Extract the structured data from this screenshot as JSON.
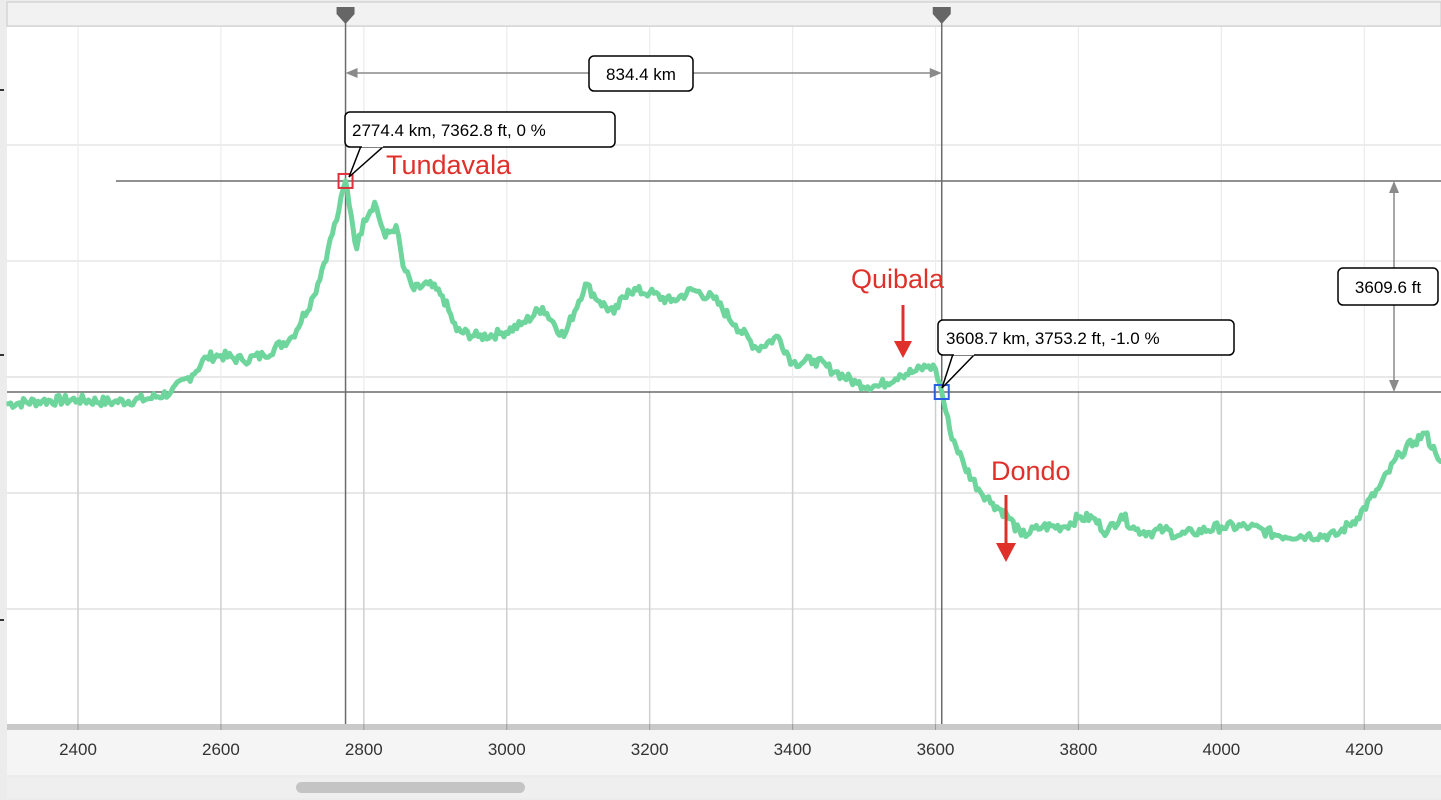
{
  "chart_data": {
    "type": "line",
    "title": "",
    "xlabel": "",
    "ylabel": "",
    "xlim": [
      2300,
      4310
    ],
    "x_ticks": [
      2400,
      2600,
      2800,
      3000,
      3200,
      3400,
      3600,
      3800,
      4000,
      4200
    ],
    "x_tick_labels": [
      "2400",
      "2600",
      "2800",
      "3000",
      "3200",
      "3400",
      "3600",
      "3800",
      "4000",
      "4200"
    ],
    "grid": true,
    "series": [
      {
        "color": "#6ed69c",
        "points": [
          [
            2300,
            3550
          ],
          [
            2350,
            3600
          ],
          [
            2400,
            3620
          ],
          [
            2450,
            3580
          ],
          [
            2500,
            3640
          ],
          [
            2530,
            3750
          ],
          [
            2560,
            4050
          ],
          [
            2580,
            4350
          ],
          [
            2600,
            4380
          ],
          [
            2630,
            4300
          ],
          [
            2660,
            4380
          ],
          [
            2700,
            4700
          ],
          [
            2730,
            5400
          ],
          [
            2750,
            6200
          ],
          [
            2765,
            6850
          ],
          [
            2774.4,
            7362.8
          ],
          [
            2782,
            6800
          ],
          [
            2790,
            6200
          ],
          [
            2800,
            6700
          ],
          [
            2815,
            7000
          ],
          [
            2830,
            6400
          ],
          [
            2845,
            6600
          ],
          [
            2855,
            5900
          ],
          [
            2870,
            5500
          ],
          [
            2890,
            5600
          ],
          [
            2910,
            5400
          ],
          [
            2930,
            4800
          ],
          [
            2960,
            4700
          ],
          [
            2990,
            4750
          ],
          [
            3020,
            4900
          ],
          [
            3050,
            5200
          ],
          [
            3080,
            4700
          ],
          [
            3110,
            5600
          ],
          [
            3130,
            5300
          ],
          [
            3150,
            5100
          ],
          [
            3170,
            5500
          ],
          [
            3200,
            5450
          ],
          [
            3230,
            5300
          ],
          [
            3260,
            5500
          ],
          [
            3290,
            5350
          ],
          [
            3320,
            4900
          ],
          [
            3350,
            4500
          ],
          [
            3380,
            4700
          ],
          [
            3400,
            4250
          ],
          [
            3430,
            4300
          ],
          [
            3460,
            4100
          ],
          [
            3490,
            3900
          ],
          [
            3520,
            3850
          ],
          [
            3550,
            4050
          ],
          [
            3570,
            4100
          ],
          [
            3590,
            4200
          ],
          [
            3600,
            4150
          ],
          [
            3608.7,
            3753.2
          ],
          [
            3620,
            3100
          ],
          [
            3640,
            2500
          ],
          [
            3660,
            2100
          ],
          [
            3680,
            1850
          ],
          [
            3700,
            1650
          ],
          [
            3720,
            1300
          ],
          [
            3750,
            1450
          ],
          [
            3780,
            1450
          ],
          [
            3800,
            1600
          ],
          [
            3820,
            1600
          ],
          [
            3840,
            1350
          ],
          [
            3860,
            1650
          ],
          [
            3880,
            1400
          ],
          [
            3900,
            1350
          ],
          [
            3920,
            1400
          ],
          [
            3940,
            1300
          ],
          [
            3960,
            1350
          ],
          [
            4000,
            1450
          ],
          [
            4040,
            1450
          ],
          [
            4080,
            1300
          ],
          [
            4120,
            1300
          ],
          [
            4160,
            1300
          ],
          [
            4190,
            1600
          ],
          [
            4220,
            2100
          ],
          [
            4250,
            2700
          ],
          [
            4270,
            2900
          ],
          [
            4285,
            3050
          ],
          [
            4300,
            2700
          ],
          [
            4310,
            2600
          ]
        ]
      }
    ],
    "markers": [
      {
        "name": "start-marker",
        "x": 2774.4,
        "y": 7362.8,
        "color": "#e0303c",
        "label": "2774.4 km, 7362.8 ft, 0 %"
      },
      {
        "name": "end-marker",
        "x": 3608.7,
        "y": 3753.2,
        "color": "#2b5fe0",
        "label": "3608.7 km, 3753.2 ft, -1.0 %"
      }
    ],
    "distance_label": "834.4 km",
    "elevation_diff_label": "3609.6 ft",
    "annotations": [
      {
        "text": "Tundavala",
        "color": "#e0302a",
        "arrow": false
      },
      {
        "text": "Quibala",
        "color": "#e0302a",
        "arrow": true,
        "x": 3560,
        "y": 4100
      },
      {
        "text": "Dondo",
        "color": "#e0302a",
        "arrow": true,
        "x": 3700,
        "y": 1800
      }
    ]
  }
}
